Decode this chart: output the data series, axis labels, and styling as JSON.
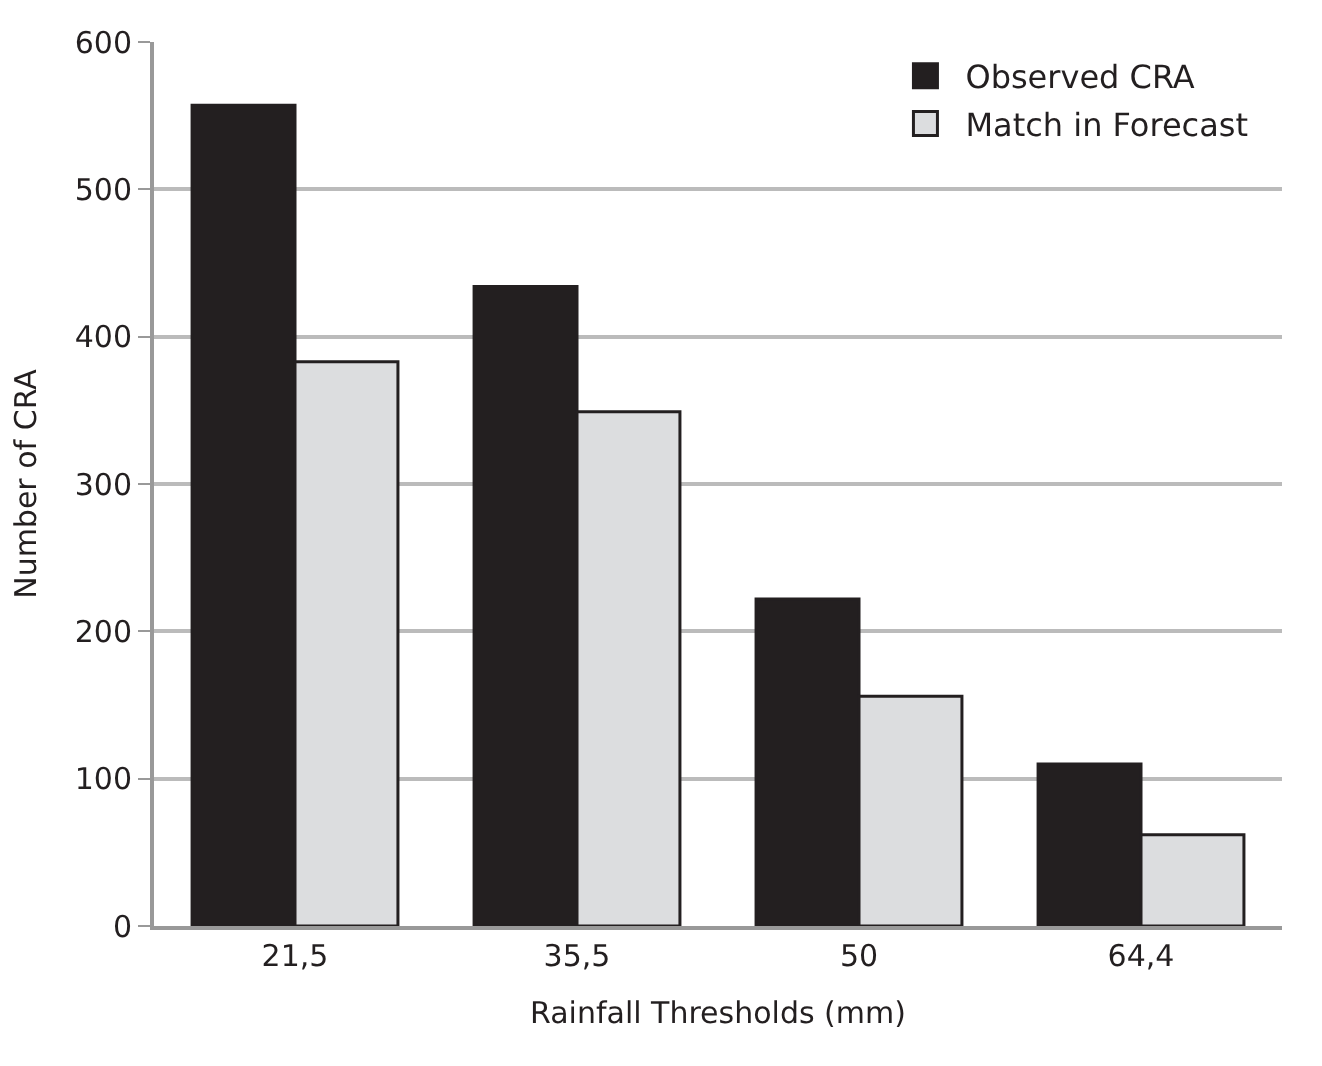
{
  "chart_data": {
    "type": "bar",
    "xlabel": "Rainfall Thresholds (mm)",
    "ylabel": "Number of CRA",
    "categories": [
      "21,5",
      "35,5",
      "50",
      "64,4"
    ],
    "series": [
      {
        "name": "Observed CRA",
        "color": "#231f20",
        "values": [
          557,
          434,
          222,
          110
        ]
      },
      {
        "name": "Match in Forecast",
        "color": "#dcdddf",
        "values": [
          383,
          349,
          156,
          62
        ]
      }
    ],
    "ylim": [
      0,
      600
    ],
    "yticks": [
      0,
      100,
      200,
      300,
      400,
      500,
      600
    ],
    "grid": "y",
    "legend": "top right"
  }
}
